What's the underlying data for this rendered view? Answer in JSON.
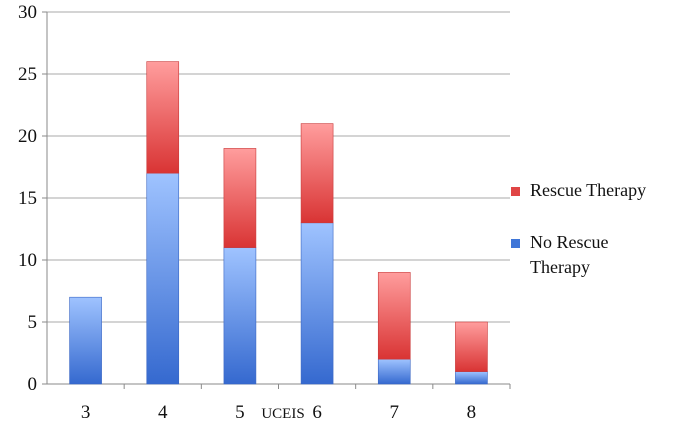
{
  "chart_data": {
    "type": "bar",
    "stacked": true,
    "title": "",
    "xlabel": "UCEIS",
    "ylabel": "",
    "ylim": [
      0,
      30
    ],
    "yticks": [
      0,
      5,
      10,
      15,
      20,
      25,
      30
    ],
    "grid": true,
    "legend_position": "right",
    "categories": [
      "3",
      "4",
      "5",
      "6",
      "7",
      "8"
    ],
    "series": [
      {
        "name": "No Rescue Therapy",
        "values": [
          7,
          17,
          11,
          13,
          2,
          1
        ],
        "color": "#3f76d8"
      },
      {
        "name": "Rescue Therapy",
        "values": [
          0,
          9,
          8,
          8,
          7,
          4
        ],
        "color": "#e04545"
      }
    ],
    "legend": [
      {
        "lines": [
          "Rescue Therapy"
        ],
        "color": "#e04545"
      },
      {
        "lines": [
          "No Rescue",
          "Therapy"
        ],
        "color": "#3f76d8"
      }
    ]
  }
}
